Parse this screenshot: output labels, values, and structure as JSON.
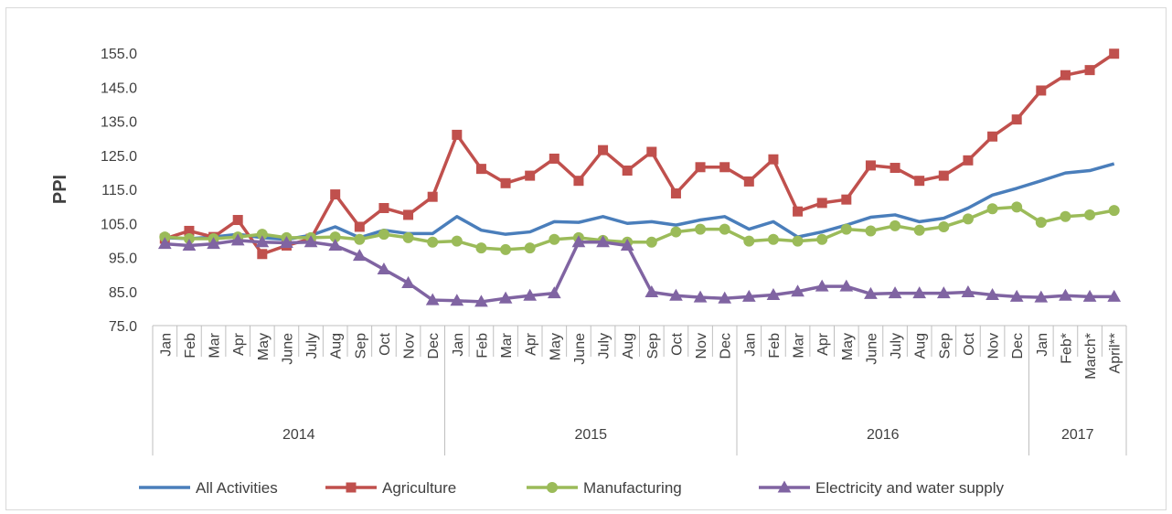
{
  "chart_data": {
    "type": "line",
    "ylabel": "PPI",
    "ylim": [
      75,
      155
    ],
    "yticks": [
      "75.0",
      "85.0",
      "95.0",
      "105.0",
      "115.0",
      "125.0",
      "135.0",
      "145.0",
      "155.0"
    ],
    "grid": false,
    "legend_position": "bottom",
    "categories": [
      "Jan",
      "Feb",
      "Mar",
      "Apr",
      "May",
      "June",
      "July",
      "Aug",
      "Sep",
      "Oct",
      "Nov",
      "Dec",
      "Jan",
      "Feb",
      "Mar",
      "Apr",
      "May",
      "June",
      "July",
      "Aug",
      "Sep",
      "Oct",
      "Nov",
      "Dec",
      "Jan",
      "Feb",
      "Mar",
      "Apr",
      "May",
      "June",
      "July",
      "Aug",
      "Sep",
      "Oct",
      "Nov",
      "Dec",
      "Jan",
      "Feb*",
      "March*",
      "April**"
    ],
    "years": [
      {
        "label": "2014",
        "count": 12
      },
      {
        "label": "2015",
        "count": 12
      },
      {
        "label": "2016",
        "count": 12
      },
      {
        "label": "2017",
        "count": 4
      }
    ],
    "series": [
      {
        "name": "All Activities",
        "color": "#4a7ebb",
        "marker": "none",
        "values": [
          100.8,
          100.5,
          101.0,
          101.8,
          100.8,
          100.3,
          101.5,
          104.0,
          100.8,
          103.0,
          102.0,
          102.0,
          107.0,
          103.0,
          101.8,
          102.5,
          105.5,
          105.3,
          107.0,
          105.0,
          105.5,
          104.5,
          106.0,
          107.0,
          103.3,
          105.5,
          101.0,
          102.5,
          104.5,
          106.8,
          107.5,
          105.5,
          106.5,
          109.5,
          113.3,
          115.3,
          117.5,
          119.8,
          120.5,
          122.5
        ]
      },
      {
        "name": "Agriculture",
        "color": "#c0504d",
        "marker": "square",
        "values": [
          100.5,
          102.8,
          101.0,
          106.0,
          96.0,
          98.5,
          100.5,
          113.5,
          104.0,
          109.5,
          107.5,
          112.8,
          131.0,
          121.0,
          116.8,
          119.0,
          124.0,
          117.5,
          126.5,
          120.5,
          126.0,
          113.8,
          121.5,
          121.5,
          117.3,
          123.8,
          108.5,
          111.0,
          112.0,
          122.0,
          121.3,
          117.5,
          119.0,
          123.5,
          130.5,
          135.5,
          144.0,
          148.5,
          150.0,
          154.8
        ]
      },
      {
        "name": "Manufacturing",
        "color": "#9bbb59",
        "marker": "circle",
        "values": [
          101.0,
          100.5,
          100.5,
          101.0,
          101.8,
          100.8,
          100.8,
          101.0,
          100.3,
          101.8,
          100.8,
          99.5,
          99.8,
          97.8,
          97.3,
          97.8,
          100.3,
          100.8,
          100.0,
          99.5,
          99.5,
          102.5,
          103.3,
          103.3,
          99.8,
          100.3,
          99.8,
          100.3,
          103.3,
          102.8,
          104.3,
          103.0,
          104.0,
          106.3,
          109.3,
          109.8,
          105.3,
          107.0,
          107.5,
          108.8
        ]
      },
      {
        "name": "Electricity and water supply",
        "color": "#8064a2",
        "marker": "triangle",
        "values": [
          99.0,
          98.5,
          99.0,
          100.0,
          99.5,
          99.3,
          99.5,
          98.5,
          95.5,
          91.5,
          87.5,
          82.5,
          82.3,
          82.0,
          83.0,
          83.8,
          84.5,
          99.5,
          99.5,
          98.5,
          84.8,
          83.8,
          83.3,
          83.0,
          83.5,
          84.0,
          85.0,
          86.5,
          86.5,
          84.3,
          84.5,
          84.5,
          84.5,
          84.8,
          84.0,
          83.5,
          83.3,
          83.8,
          83.5,
          83.5
        ]
      }
    ]
  }
}
